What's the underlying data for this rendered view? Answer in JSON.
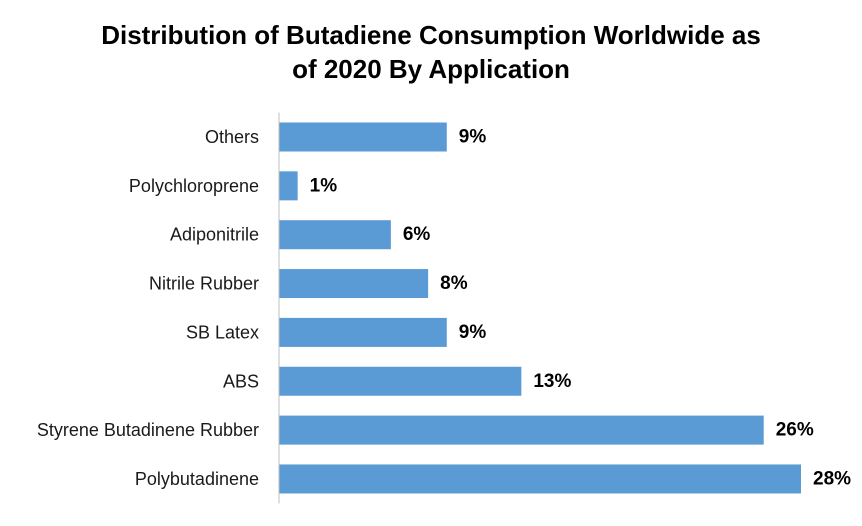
{
  "chart_data": {
    "type": "bar",
    "orientation": "horizontal",
    "title_lines": [
      "Distribution of Butadiene Consumption Worldwide as",
      "of 2020 By Application"
    ],
    "categories": [
      "Others",
      "Polychloroprene",
      "Adiponitrile",
      "Nitrile Rubber",
      "SB Latex",
      "ABS",
      "Styrene Butadinene Rubber",
      "Polybutadinene"
    ],
    "values": [
      9,
      1,
      6,
      8,
      9,
      13,
      26,
      28
    ],
    "data_labels": [
      "9%",
      "1%",
      "6%",
      "8%",
      "9%",
      "13%",
      "26%",
      "28%"
    ],
    "xlim": [
      0,
      28
    ],
    "grid": false,
    "legend": "none",
    "bar_color": "#5b9bd5",
    "axis_color": "#bfbfbf"
  }
}
